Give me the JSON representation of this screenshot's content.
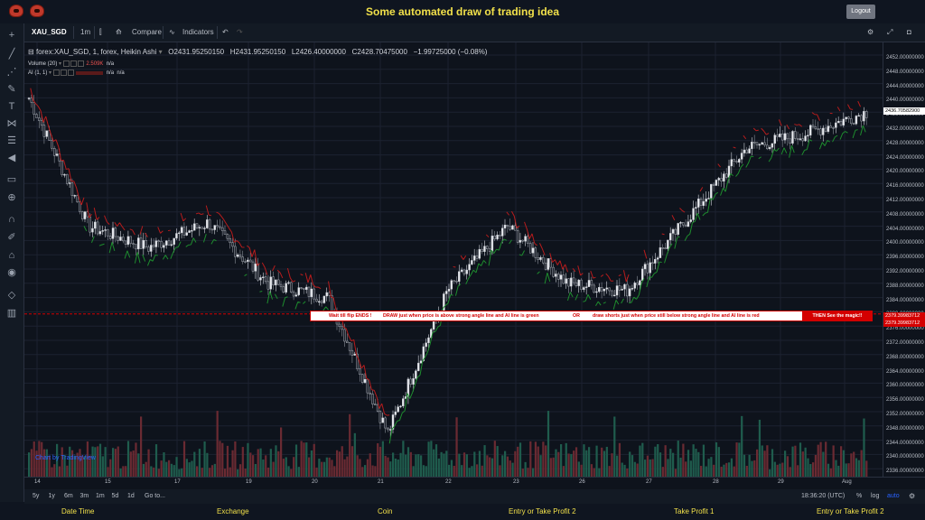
{
  "app": {
    "title": "Some automated draw of trading idea",
    "logout_label": "Logout"
  },
  "toolbar": {
    "symbol": "XAU_SGD",
    "interval": "1m",
    "compare_label": "Compare",
    "indicators_label": "Indicators"
  },
  "legend": {
    "main_title": "forex:XAU_SGD, 1, forex, Heikin Ashi",
    "open": "O2431.95250150",
    "high": "H2431.95250150",
    "low": "L2426.40000000",
    "close": "C2428.70475000",
    "change": "−1.99725000 (−0.08%)",
    "volume_label": "Volume (20)",
    "volume_value": "2.509K",
    "volume_na": "n/a",
    "ai_label": "AI (1, 1)",
    "ai_na1": "n/a",
    "ai_na2": "n/a"
  },
  "price_axis": {
    "ticks": [
      "2452.00000000",
      "2448.00000000",
      "2444.00000000",
      "2440.00000000",
      "2436.00000000",
      "2432.00000000",
      "2428.00000000",
      "2424.00000000",
      "2420.00000000",
      "2416.00000000",
      "2412.00000000",
      "2408.00000000",
      "2404.00000000",
      "2400.00000000",
      "2396.00000000",
      "2392.00000000",
      "2388.00000000",
      "2384.00000000",
      "2380.00000000",
      "2376.00000000",
      "2372.00000000",
      "2368.00000000",
      "2364.00000000",
      "2360.00000000",
      "2356.00000000",
      "2352.00000000",
      "2348.00000000",
      "2344.00000000",
      "2340.00000000",
      "2336.00000000"
    ],
    "last_price": "2436.70582900",
    "line_price_1": "2379.39983712",
    "line_price_2": "2379.39983712"
  },
  "time_axis": {
    "ticks": [
      "14",
      "15",
      "17",
      "19",
      "20",
      "21",
      "22",
      "23",
      "26",
      "27",
      "28",
      "29",
      "Aug"
    ]
  },
  "banner": {
    "part1": "Wait till flip ENDS  !",
    "part2": "DRAW just when  price is above strong angle line and AI line is green",
    "part3": "OR",
    "part4": "draw shorts just when price still below strong angle line and AI line is red",
    "part5": "THEN See the magic!!"
  },
  "watermark": "Chart by TradingView",
  "bottombar": {
    "ranges": [
      "5y",
      "1y",
      "6m",
      "3m",
      "1m",
      "5d",
      "1d"
    ],
    "goto_label": "Go to...",
    "time": "18:36:20 (UTC)",
    "percent": "%",
    "log": "log",
    "auto": "auto"
  },
  "footer": {
    "items": [
      "Date Time",
      "Exchange",
      "Coin",
      "Entry or Take Profit 2",
      "Take Profit 1",
      "Entry or Take Profit 2"
    ]
  },
  "chart_data": {
    "type": "candlestick",
    "symbol": "XAU_SGD",
    "ylim": [
      2334,
      2454
    ],
    "x": [
      "14",
      "15",
      "17",
      "19",
      "20",
      "21",
      "22",
      "23",
      "26",
      "27",
      "28",
      "29",
      "Aug"
    ],
    "close_approx": [
      2440,
      2404,
      2398,
      2405,
      2388,
      2384,
      2346,
      2386,
      2404,
      2388,
      2386,
      2406,
      2426,
      2430,
      2436
    ],
    "horizontal_line": 2379.39983712,
    "colors": {
      "up": "#26a69a",
      "down": "#ef5350",
      "ai_green": "#1e8c2e",
      "ai_red": "#b71c1c",
      "banner_text": "#d40000"
    }
  }
}
